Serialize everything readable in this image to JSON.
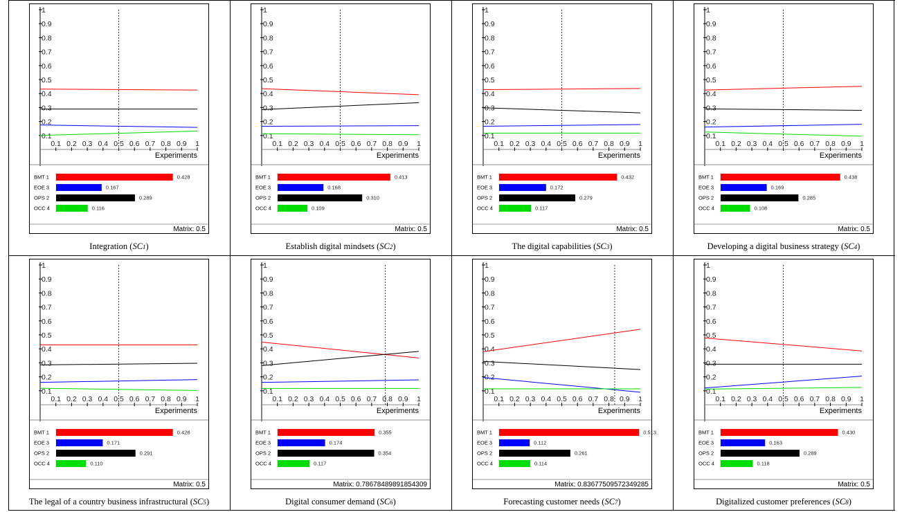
{
  "chart_data": [
    {
      "type": "line",
      "caption": {
        "text": "Integration (",
        "abbr": "SC",
        "sub": "1",
        "close": ")"
      },
      "xlabel": "Experiments",
      "xlim": [
        0,
        1
      ],
      "ylim": [
        0,
        1
      ],
      "xticks": [
        "0.1",
        "0.2",
        "0.3",
        "0.4",
        "0.5",
        "0.6",
        "0.7",
        "0.8",
        "0.9",
        "1"
      ],
      "yticks": [
        "0.1",
        "0.2",
        "0.3",
        "0.4",
        "0.5",
        "0.6",
        "0.7",
        "0.8",
        "0.9",
        "1"
      ],
      "marker_x": 0.5,
      "series": [
        {
          "name": "BMT 1",
          "color": "#ff0000",
          "start": 0.432,
          "end": 0.425,
          "bar_value": "0.428"
        },
        {
          "name": "EOE 3",
          "color": "#0000ff",
          "start": 0.175,
          "end": 0.158,
          "bar_value": "0.167"
        },
        {
          "name": "OPS 2",
          "color": "#000000",
          "start": 0.289,
          "end": 0.289,
          "bar_value": "0.289"
        },
        {
          "name": "OCC 4",
          "color": "#00dd00",
          "start": 0.1,
          "end": 0.132,
          "bar_value": "0.116"
        }
      ],
      "matrix": "Matrix: 0.5"
    },
    {
      "type": "line",
      "caption": {
        "text": "Establish digital mindsets (",
        "abbr": "SC",
        "sub": "2",
        "close": ")"
      },
      "xlabel": "Experiments",
      "xlim": [
        0,
        1
      ],
      "ylim": [
        0,
        1
      ],
      "xticks": [
        "0.1",
        "0.2",
        "0.3",
        "0.4",
        "0.5",
        "0.6",
        "0.7",
        "0.8",
        "0.9",
        "1"
      ],
      "yticks": [
        "0.1",
        "0.2",
        "0.3",
        "0.4",
        "0.5",
        "0.6",
        "0.7",
        "0.8",
        "0.9",
        "1"
      ],
      "marker_x": 0.5,
      "series": [
        {
          "name": "BMT 1",
          "color": "#ff0000",
          "start": 0.435,
          "end": 0.392,
          "bar_value": "0.413"
        },
        {
          "name": "EOE 3",
          "color": "#0000ff",
          "start": 0.166,
          "end": 0.17,
          "bar_value": "0.168"
        },
        {
          "name": "OPS 2",
          "color": "#000000",
          "start": 0.285,
          "end": 0.335,
          "bar_value": "0.310"
        },
        {
          "name": "OCC 4",
          "color": "#00dd00",
          "start": 0.113,
          "end": 0.105,
          "bar_value": "0.109"
        }
      ],
      "matrix": "Matrix: 0.5"
    },
    {
      "type": "line",
      "caption": {
        "text": "The digital capabilities (",
        "abbr": "SC",
        "sub": "3",
        "close": ")"
      },
      "xlabel": "Experiments",
      "xlim": [
        0,
        1
      ],
      "ylim": [
        0,
        1
      ],
      "xticks": [
        "0.1",
        "0.2",
        "0.3",
        "0.4",
        "0.5",
        "0.6",
        "0.7",
        "0.8",
        "0.9",
        "1"
      ],
      "yticks": [
        "0.1",
        "0.2",
        "0.3",
        "0.4",
        "0.5",
        "0.6",
        "0.7",
        "0.8",
        "0.9",
        "1"
      ],
      "marker_x": 0.5,
      "series": [
        {
          "name": "BMT 1",
          "color": "#ff0000",
          "start": 0.428,
          "end": 0.436,
          "bar_value": "0.432"
        },
        {
          "name": "EOE 3",
          "color": "#0000ff",
          "start": 0.166,
          "end": 0.178,
          "bar_value": "0.172"
        },
        {
          "name": "OPS 2",
          "color": "#000000",
          "start": 0.298,
          "end": 0.262,
          "bar_value": "0.279"
        },
        {
          "name": "OCC 4",
          "color": "#00dd00",
          "start": 0.117,
          "end": 0.117,
          "bar_value": "0.117"
        }
      ],
      "matrix": "Matrix: 0.5"
    },
    {
      "type": "line",
      "caption": {
        "text": "Developing a digital business strategy (",
        "abbr": "SC",
        "sub": "4",
        "close": ")"
      },
      "xlabel": "Experiments",
      "xlim": [
        0,
        1
      ],
      "ylim": [
        0,
        1
      ],
      "xticks": [
        "0.1",
        "0.2",
        "0.3",
        "0.4",
        "0.5",
        "0.6",
        "0.7",
        "0.8",
        "0.9",
        "1"
      ],
      "yticks": [
        "0.1",
        "0.2",
        "0.3",
        "0.4",
        "0.5",
        "0.6",
        "0.7",
        "0.8",
        "0.9",
        "1"
      ],
      "marker_x": 0.5,
      "series": [
        {
          "name": "BMT 1",
          "color": "#ff0000",
          "start": 0.425,
          "end": 0.452,
          "bar_value": "0.438"
        },
        {
          "name": "EOE 3",
          "color": "#0000ff",
          "start": 0.16,
          "end": 0.18,
          "bar_value": "0.169"
        },
        {
          "name": "OPS 2",
          "color": "#000000",
          "start": 0.29,
          "end": 0.28,
          "bar_value": "0.285"
        },
        {
          "name": "OCC 4",
          "color": "#00dd00",
          "start": 0.125,
          "end": 0.095,
          "bar_value": "0.108"
        }
      ],
      "matrix": "Matrix: 0.5"
    },
    {
      "type": "line",
      "caption": {
        "text": "The legal of a country business infrastructural (",
        "abbr": "SC",
        "sub": "5",
        "close": ")"
      },
      "xlabel": "Experiments",
      "xlim": [
        0,
        1
      ],
      "ylim": [
        0,
        1
      ],
      "xticks": [
        "0.1",
        "0.2",
        "0.3",
        "0.4",
        "0.5",
        "0.6",
        "0.7",
        "0.8",
        "0.9",
        "1"
      ],
      "yticks": [
        "0.1",
        "0.2",
        "0.3",
        "0.4",
        "0.5",
        "0.6",
        "0.7",
        "0.8",
        "0.9",
        "1"
      ],
      "marker_x": 0.5,
      "series": [
        {
          "name": "BMT 1",
          "color": "#ff0000",
          "start": 0.428,
          "end": 0.428,
          "bar_value": "0.428"
        },
        {
          "name": "EOE 3",
          "color": "#0000ff",
          "start": 0.16,
          "end": 0.18,
          "bar_value": "0.171"
        },
        {
          "name": "OPS 2",
          "color": "#000000",
          "start": 0.285,
          "end": 0.297,
          "bar_value": "0.291"
        },
        {
          "name": "OCC 4",
          "color": "#00dd00",
          "start": 0.118,
          "end": 0.102,
          "bar_value": "0.110"
        }
      ],
      "matrix": "Matrix: 0.5"
    },
    {
      "type": "line",
      "caption": {
        "text": "Digital consumer demand (",
        "abbr": "SC",
        "sub": "6",
        "close": ")"
      },
      "xlabel": "Experiments",
      "xlim": [
        0,
        1
      ],
      "ylim": [
        0,
        1
      ],
      "xticks": [
        "0.1",
        "0.2",
        "0.3",
        "0.4",
        "0.5",
        "0.6",
        "0.7",
        "0.8",
        "0.9",
        "1"
      ],
      "yticks": [
        "0.1",
        "0.2",
        "0.3",
        "0.4",
        "0.5",
        "0.6",
        "0.7",
        "0.8",
        "0.9",
        "1"
      ],
      "marker_x": 0.7867848989185431,
      "series": [
        {
          "name": "BMT 1",
          "color": "#ff0000",
          "start": 0.448,
          "end": 0.335,
          "bar_value": "0.355"
        },
        {
          "name": "EOE 3",
          "color": "#0000ff",
          "start": 0.16,
          "end": 0.178,
          "bar_value": "0.174"
        },
        {
          "name": "OPS 2",
          "color": "#000000",
          "start": 0.28,
          "end": 0.382,
          "bar_value": "0.354"
        },
        {
          "name": "OCC 4",
          "color": "#00dd00",
          "start": 0.117,
          "end": 0.117,
          "bar_value": "0.117"
        }
      ],
      "matrix": "Matrix: 0.78678489891854309"
    },
    {
      "type": "line",
      "caption": {
        "text": "Forecasting customer needs (",
        "abbr": "SC",
        "sub": "7",
        "close": ")"
      },
      "xlabel": "Experiments",
      "xlim": [
        0,
        1
      ],
      "ylim": [
        0,
        1
      ],
      "xticks": [
        "0.1",
        "0.2",
        "0.3",
        "0.4",
        "0.5",
        "0.6",
        "0.7",
        "0.8",
        "0.9",
        "1"
      ],
      "yticks": [
        "0.1",
        "0.2",
        "0.3",
        "0.4",
        "0.5",
        "0.6",
        "0.7",
        "0.8",
        "0.9",
        "1"
      ],
      "marker_x": 0.8367750957234928,
      "series": [
        {
          "name": "BMT 1",
          "color": "#ff0000",
          "start": 0.38,
          "end": 0.54,
          "bar_value": "0.513"
        },
        {
          "name": "EOE 3",
          "color": "#0000ff",
          "start": 0.195,
          "end": 0.09,
          "bar_value": "0.112"
        },
        {
          "name": "OPS 2",
          "color": "#000000",
          "start": 0.31,
          "end": 0.252,
          "bar_value": "0.261"
        },
        {
          "name": "OCC 4",
          "color": "#00dd00",
          "start": 0.114,
          "end": 0.114,
          "bar_value": "0.114"
        }
      ],
      "matrix": "Matrix: 0.83677509572349285"
    },
    {
      "type": "line",
      "caption": {
        "text": "Digitalized customer preferences (",
        "abbr": "SC",
        "sub": "8",
        "close": ")"
      },
      "xlabel": "Experiments",
      "xlim": [
        0,
        1
      ],
      "ylim": [
        0,
        1
      ],
      "xticks": [
        "0.1",
        "0.2",
        "0.3",
        "0.4",
        "0.5",
        "0.6",
        "0.7",
        "0.8",
        "0.9",
        "1"
      ],
      "yticks": [
        "0.1",
        "0.2",
        "0.3",
        "0.4",
        "0.5",
        "0.6",
        "0.7",
        "0.8",
        "0.9",
        "1"
      ],
      "marker_x": 0.5,
      "series": [
        {
          "name": "BMT 1",
          "color": "#ff0000",
          "start": 0.478,
          "end": 0.385,
          "bar_value": "0.430"
        },
        {
          "name": "EOE 3",
          "color": "#0000ff",
          "start": 0.12,
          "end": 0.205,
          "bar_value": "0.163"
        },
        {
          "name": "OPS 2",
          "color": "#000000",
          "start": 0.29,
          "end": 0.29,
          "bar_value": "0.289"
        },
        {
          "name": "OCC 4",
          "color": "#00dd00",
          "start": 0.112,
          "end": 0.124,
          "bar_value": "0.118"
        }
      ],
      "matrix": "Matrix: 0.5"
    }
  ]
}
